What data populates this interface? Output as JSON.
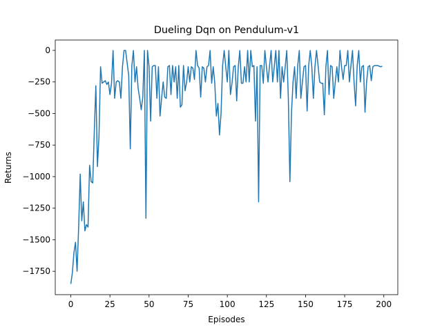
{
  "chart_data": {
    "type": "line",
    "title": "Dueling Dqn on Pendulum-v1",
    "x_label": "Episodes",
    "y_label": "Returns",
    "series": [
      {
        "color": "#1f77b4",
        "values": [
          -1850,
          -1760,
          -1600,
          -1520,
          -1750,
          -1400,
          -980,
          -1350,
          -1200,
          -1430,
          -1380,
          -1400,
          -910,
          -1040,
          -1050,
          -640,
          -280,
          -920,
          -680,
          -130,
          -260,
          -250,
          -240,
          -270,
          -250,
          -350,
          -260,
          -1,
          -380,
          -250,
          -240,
          -250,
          -380,
          -130,
          -1,
          -1,
          -100,
          -200,
          -780,
          -120,
          -1,
          -250,
          -130,
          -300,
          -380,
          -470,
          -370,
          -1,
          -1330,
          -1,
          -130,
          -560,
          -130,
          -120,
          -120,
          -380,
          -130,
          -520,
          -380,
          -250,
          -370,
          -380,
          -130,
          -120,
          -350,
          -120,
          -250,
          -130,
          -380,
          -120,
          -450,
          -430,
          -120,
          -320,
          -250,
          -130,
          -250,
          -130,
          -140,
          -230,
          -1,
          -120,
          -140,
          -370,
          -130,
          -140,
          -250,
          -130,
          -120,
          -1,
          -260,
          -130,
          -260,
          -520,
          -420,
          -670,
          -500,
          -120,
          -1,
          -130,
          -250,
          -1,
          -350,
          -260,
          -130,
          -120,
          -400,
          -130,
          -1,
          -260,
          -260,
          -130,
          -250,
          -1,
          -250,
          -1,
          -130,
          -120,
          -560,
          -130,
          -1200,
          -120,
          -120,
          -260,
          -1,
          -130,
          -250,
          -120,
          -1,
          -250,
          -130,
          -1,
          -250,
          -1,
          -380,
          -130,
          -250,
          -130,
          -1,
          -380,
          -1040,
          -500,
          -250,
          -130,
          -380,
          -120,
          -1,
          -380,
          -250,
          -130,
          -120,
          -480,
          -120,
          -1,
          -130,
          -380,
          -130,
          -1,
          -120,
          -250,
          -260,
          -260,
          -510,
          -130,
          -1,
          -350,
          -120,
          -130,
          -380,
          -250,
          -130,
          -250,
          -1,
          -130,
          -230,
          -120,
          -120,
          -1,
          -250,
          -120,
          -1,
          -250,
          -440,
          -120,
          -1,
          -250,
          -130,
          -120,
          -490,
          -250,
          -130,
          -120,
          -240,
          -130,
          -120,
          -120,
          -120,
          -125,
          -130,
          -125
        ]
      }
    ],
    "xlim": [
      -9.95,
      208.95
    ],
    "ylim": [
      -1935,
      82
    ],
    "xticks": [
      0,
      25,
      50,
      75,
      100,
      125,
      150,
      175,
      200
    ],
    "yticks": [
      0,
      {
        "value": -250,
        "label": "−250"
      },
      {
        "value": -500,
        "label": "−500"
      },
      {
        "value": -750,
        "label": "−750"
      },
      {
        "value": -1000,
        "label": "−1000"
      },
      {
        "value": -1250,
        "label": "−1250"
      },
      {
        "value": -1500,
        "label": "−1500"
      },
      {
        "value": -1750,
        "label": "−1750"
      }
    ]
  }
}
